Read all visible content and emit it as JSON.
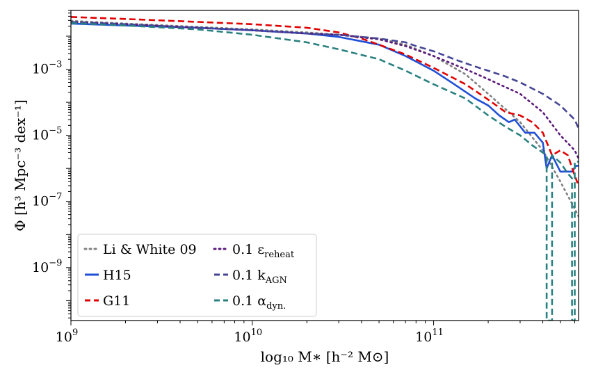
{
  "chart_data": {
    "type": "line",
    "title": "",
    "xlabel": "log₁₀ M∗ [h⁻² M⊙]",
    "ylabel": "Φ [h³ Mpc⁻³ dex⁻¹]",
    "xscale": "log",
    "yscale": "log",
    "xlim": [
      1000000000.0,
      630000000000.0
    ],
    "ylim": [
      2.5e-11,
      0.06
    ],
    "grid": false,
    "legend_position": "lower-left",
    "x_ticks": [
      {
        "value": 1000000000.0,
        "base": "10",
        "exp": "9"
      },
      {
        "value": 10000000000.0,
        "base": "10",
        "exp": "10"
      },
      {
        "value": 100000000000.0,
        "base": "10",
        "exp": "11"
      }
    ],
    "y_ticks": [
      {
        "value": 0.001,
        "base": "10",
        "exp": "−3"
      },
      {
        "value": 1e-05,
        "base": "10",
        "exp": "−5"
      },
      {
        "value": 1e-07,
        "base": "10",
        "exp": "−7"
      },
      {
        "value": 1e-09,
        "base": "10",
        "exp": "−9"
      }
    ],
    "series": [
      {
        "name": "Li & White 09",
        "color": "#808080",
        "dash": "dot",
        "points": [
          [
            1000000000.0,
            0.029
          ],
          [
            2000000000.0,
            0.024
          ],
          [
            5000000000.0,
            0.019
          ],
          [
            10000000000.0,
            0.016
          ],
          [
            20000000000.0,
            0.013
          ],
          [
            30000000000.0,
            0.011
          ],
          [
            50000000000.0,
            0.0085
          ],
          [
            70000000000.0,
            0.0055
          ],
          [
            100000000000.0,
            0.0025
          ],
          [
            150000000000.0,
            0.0007
          ],
          [
            200000000000.0,
            0.00018
          ],
          [
            300000000000.0,
            2.5e-05
          ],
          [
            400000000000.0,
            3.5e-06
          ],
          [
            500000000000.0,
            4e-07
          ],
          [
            600000000000.0,
            6e-08
          ],
          [
            630000000000.0,
            3.5e-08
          ]
        ]
      },
      {
        "name": "H15",
        "color": "#1f4fd6",
        "dash": "solid",
        "points": [
          [
            1000000000.0,
            0.024
          ],
          [
            2000000000.0,
            0.021
          ],
          [
            5000000000.0,
            0.018
          ],
          [
            10000000000.0,
            0.015
          ],
          [
            20000000000.0,
            0.012
          ],
          [
            30000000000.0,
            0.0095
          ],
          [
            50000000000.0,
            0.0055
          ],
          [
            70000000000.0,
            0.0025
          ],
          [
            100000000000.0,
            0.0009
          ],
          [
            130000000000.0,
            0.00035
          ],
          [
            170000000000.0,
            0.00013
          ],
          [
            200000000000.0,
            8e-05
          ],
          [
            230000000000.0,
            4e-05
          ],
          [
            260000000000.0,
            2.5e-05
          ],
          [
            280000000000.0,
            3e-05
          ],
          [
            320000000000.0,
            1.2e-05
          ],
          [
            360000000000.0,
            1.2e-05
          ],
          [
            400000000000.0,
            6e-06
          ],
          [
            420000000000.0,
            1e-06
          ],
          [
            450000000000.0,
            2.5e-06
          ],
          [
            500000000000.0,
            8e-07
          ],
          [
            580000000000.0,
            8e-07
          ],
          [
            610000000000.0,
            1.2e-06
          ],
          [
            630000000000.0,
            1.2e-06
          ]
        ]
      },
      {
        "name": "G11",
        "color": "#e00000",
        "dash": "dashed",
        "points": [
          [
            1000000000.0,
            0.038
          ],
          [
            2000000000.0,
            0.033
          ],
          [
            5000000000.0,
            0.027
          ],
          [
            10000000000.0,
            0.023
          ],
          [
            20000000000.0,
            0.018
          ],
          [
            30000000000.0,
            0.013
          ],
          [
            40000000000.0,
            0.0085
          ],
          [
            50000000000.0,
            0.0055
          ],
          [
            70000000000.0,
            0.0028
          ],
          [
            100000000000.0,
            0.0011
          ],
          [
            150000000000.0,
            0.00035
          ],
          [
            200000000000.0,
            0.00012
          ],
          [
            250000000000.0,
            5e-05
          ],
          [
            300000000000.0,
            4e-05
          ],
          [
            350000000000.0,
            2.5e-05
          ],
          [
            400000000000.0,
            1.2e-05
          ],
          [
            450000000000.0,
            2.5e-06
          ],
          [
            500000000000.0,
            3.5e-06
          ],
          [
            550000000000.0,
            2.5e-06
          ],
          [
            600000000000.0,
            6e-07
          ],
          [
            630000000000.0,
            3e-07
          ]
        ]
      },
      {
        "name": "0.1 ε",
        "sub": "reheat",
        "color": "#5a1a7a",
        "dash": "dot",
        "points": [
          [
            1000000000.0,
            0.027
          ],
          [
            2000000000.0,
            0.023
          ],
          [
            5000000000.0,
            0.018
          ],
          [
            10000000000.0,
            0.015
          ],
          [
            20000000000.0,
            0.012
          ],
          [
            30000000000.0,
            0.011
          ],
          [
            50000000000.0,
            0.008
          ],
          [
            70000000000.0,
            0.005
          ],
          [
            100000000000.0,
            0.0025
          ],
          [
            150000000000.0,
            0.001
          ],
          [
            200000000000.0,
            0.0005
          ],
          [
            300000000000.0,
            0.00018
          ],
          [
            400000000000.0,
            5e-05
          ],
          [
            500000000000.0,
            1e-05
          ],
          [
            600000000000.0,
            3.5e-06
          ],
          [
            630000000000.0,
            2e-06
          ]
        ]
      },
      {
        "name": "0.1 k",
        "sub": "AGN",
        "color": "#454595",
        "dash": "dashed",
        "points": [
          [
            1000000000.0,
            0.027
          ],
          [
            2000000000.0,
            0.023
          ],
          [
            5000000000.0,
            0.018
          ],
          [
            10000000000.0,
            0.015
          ],
          [
            20000000000.0,
            0.012
          ],
          [
            30000000000.0,
            0.011
          ],
          [
            40000000000.0,
            0.0095
          ],
          [
            50000000000.0,
            0.0085
          ],
          [
            70000000000.0,
            0.0065
          ],
          [
            80000000000.0,
            0.005
          ],
          [
            100000000000.0,
            0.0035
          ],
          [
            130000000000.0,
            0.002
          ],
          [
            170000000000.0,
            0.0012
          ],
          [
            200000000000.0,
            0.0009
          ],
          [
            250000000000.0,
            0.0006
          ],
          [
            300000000000.0,
            0.0004
          ],
          [
            400000000000.0,
            0.00018
          ],
          [
            500000000000.0,
            8e-05
          ],
          [
            600000000000.0,
            3e-05
          ],
          [
            630000000000.0,
            1.6e-05
          ]
        ]
      },
      {
        "name": "0.1 α",
        "sub": "dyn.",
        "color": "#2a8080",
        "dash": "dashed",
        "points": [
          [
            1000000000.0,
            0.025
          ],
          [
            2000000000.0,
            0.021
          ],
          [
            5000000000.0,
            0.016
          ],
          [
            10000000000.0,
            0.011
          ],
          [
            20000000000.0,
            0.0065
          ],
          [
            30000000000.0,
            0.004
          ],
          [
            50000000000.0,
            0.002
          ],
          [
            70000000000.0,
            0.0009
          ],
          [
            100000000000.0,
            0.00035
          ],
          [
            150000000000.0,
            0.00013
          ],
          [
            200000000000.0,
            4e-05
          ],
          [
            250000000000.0,
            1.8e-05
          ],
          [
            300000000000.0,
            1e-05
          ],
          [
            350000000000.0,
            5e-06
          ],
          [
            400000000000.0,
            3e-06
          ],
          [
            420000000000.0,
            2.5e-06
          ],
          [
            420000000000.0,
            2.5e-11
          ],
          [
            450000000000.0,
            2.5e-11
          ],
          [
            450000000000.0,
            2.5e-06
          ],
          [
            500000000000.0,
            1.5e-06
          ],
          [
            550000000000.0,
            7e-07
          ],
          [
            580000000000.0,
            5e-07
          ],
          [
            580000000000.0,
            2.5e-11
          ],
          [
            600000000000.0,
            2.5e-11
          ],
          [
            600000000000.0,
            1.6e-06
          ],
          [
            630000000000.0,
            1.6e-06
          ]
        ]
      }
    ]
  }
}
